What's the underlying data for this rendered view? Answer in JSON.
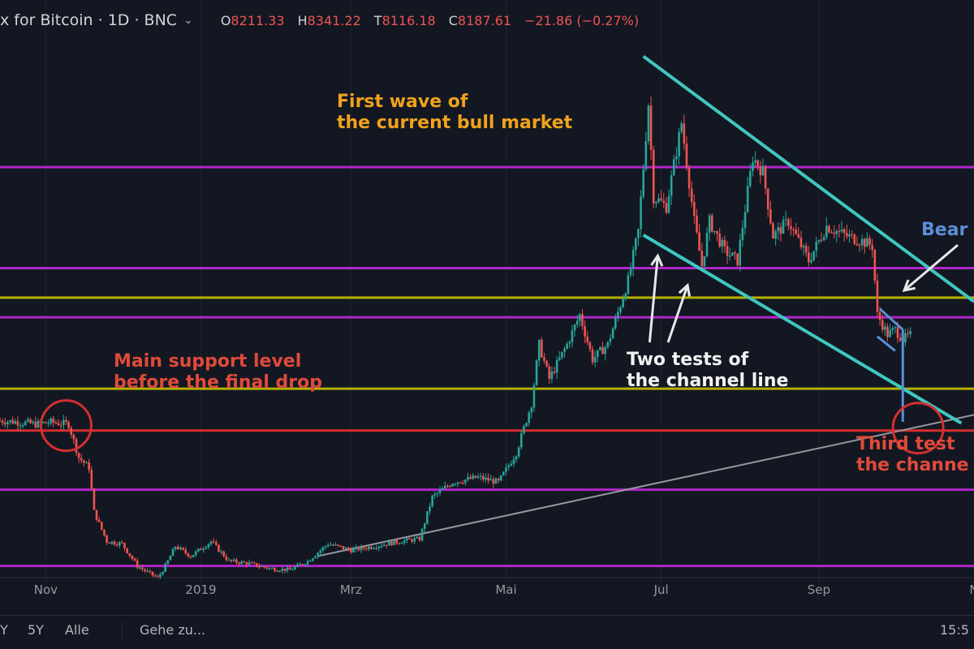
{
  "header": {
    "title": "x for Bitcoin · 1D · BNC",
    "ohlc": [
      {
        "key": "O",
        "value": "8211.33"
      },
      {
        "key": "H",
        "value": "8341.22"
      },
      {
        "key": "T",
        "value": "8116.18"
      },
      {
        "key": "C",
        "value": "8187.61"
      }
    ],
    "change": "−21.86 (−0.27%)",
    "colors": {
      "negative": "#ef5350",
      "positive": "#26a69a"
    }
  },
  "annotations": {
    "first_wave": [
      "First wave of",
      "the current bull market"
    ],
    "main_support": [
      "Main support level",
      "before the final drop"
    ],
    "two_tests": [
      "Two tests of",
      "the channel line"
    ],
    "third_test": [
      "Third test",
      "the channe"
    ],
    "bear": "Bear"
  },
  "bottom_bar": {
    "ranges": [
      "Y",
      "5Y",
      "Alle"
    ],
    "goto": "Gehe zu...",
    "clock": "15:5"
  },
  "chart_data": {
    "type": "candlestick",
    "x_axis": {
      "labels": [
        "Nov",
        "2019",
        "Mrz",
        "Mai",
        "Jul",
        "Sep",
        "N"
      ],
      "range": [
        "2018-10-14",
        "2019-11-01"
      ]
    },
    "y_range": [
      3000,
      14500
    ],
    "price_path": [
      [
        "2018-10-14",
        6450
      ],
      [
        "2018-10-20",
        6430
      ],
      [
        "2018-10-28",
        6380
      ],
      [
        "2018-11-03",
        6420
      ],
      [
        "2018-11-10",
        6380
      ],
      [
        "2018-11-14",
        5700
      ],
      [
        "2018-11-18",
        5500
      ],
      [
        "2018-11-20",
        4600
      ],
      [
        "2018-11-25",
        4000
      ],
      [
        "2018-12-01",
        3950
      ],
      [
        "2018-12-07",
        3500
      ],
      [
        "2018-12-15",
        3250
      ],
      [
        "2018-12-18",
        3500
      ],
      [
        "2018-12-22",
        3900
      ],
      [
        "2018-12-28",
        3700
      ],
      [
        "2019-01-05",
        4000
      ],
      [
        "2019-01-12",
        3600
      ],
      [
        "2019-01-20",
        3550
      ],
      [
        "2019-01-28",
        3450
      ],
      [
        "2019-02-05",
        3420
      ],
      [
        "2019-02-12",
        3600
      ],
      [
        "2019-02-20",
        3950
      ],
      [
        "2019-03-01",
        3820
      ],
      [
        "2019-03-10",
        3900
      ],
      [
        "2019-03-20",
        4000
      ],
      [
        "2019-03-28",
        4050
      ],
      [
        "2019-04-02",
        4900
      ],
      [
        "2019-04-10",
        5200
      ],
      [
        "2019-04-20",
        5300
      ],
      [
        "2019-04-28",
        5200
      ],
      [
        "2019-05-05",
        5800
      ],
      [
        "2019-05-11",
        6800
      ],
      [
        "2019-05-14",
        8000
      ],
      [
        "2019-05-18",
        7300
      ],
      [
        "2019-05-25",
        8000
      ],
      [
        "2019-05-30",
        8600
      ],
      [
        "2019-06-04",
        7700
      ],
      [
        "2019-06-10",
        8000
      ],
      [
        "2019-06-18",
        9300
      ],
      [
        "2019-06-22",
        10300
      ],
      [
        "2019-06-26",
        12900
      ],
      [
        "2019-06-28",
        11000
      ],
      [
        "2019-07-03",
        10800
      ],
      [
        "2019-07-09",
        12500
      ],
      [
        "2019-07-14",
        10500
      ],
      [
        "2019-07-17",
        9600
      ],
      [
        "2019-07-20",
        10500
      ],
      [
        "2019-07-26",
        9900
      ],
      [
        "2019-07-31",
        9700
      ],
      [
        "2019-08-06",
        11800
      ],
      [
        "2019-08-10",
        11500
      ],
      [
        "2019-08-14",
        10200
      ],
      [
        "2019-08-20",
        10500
      ],
      [
        "2019-08-28",
        9700
      ],
      [
        "2019-09-04",
        10400
      ],
      [
        "2019-09-12",
        10200
      ],
      [
        "2019-09-18",
        10100
      ],
      [
        "2019-09-22",
        10000
      ],
      [
        "2019-09-24",
        8600
      ],
      [
        "2019-09-28",
        8200
      ],
      [
        "2019-10-01",
        8300
      ],
      [
        "2019-10-04",
        8100
      ],
      [
        "2019-10-07",
        8187
      ]
    ],
    "horizontal_levels": [
      {
        "price": 11600,
        "color": "#b026c8"
      },
      {
        "price": 9550,
        "color": "#b026c8"
      },
      {
        "price": 8550,
        "color": "#b026c8"
      },
      {
        "price": 5050,
        "color": "#b026c8"
      },
      {
        "price": 3500,
        "color": "#b026c8"
      },
      {
        "price": 8950,
        "color": "#b5b000"
      },
      {
        "price": 7100,
        "color": "#b5b000"
      },
      {
        "price": 6250,
        "color": "#d32f2f"
      }
    ],
    "channel": {
      "upper": [
        [
          "2019-06-24",
          13850
        ],
        [
          "2019-11-01",
          8870
        ]
      ],
      "lower": [
        [
          "2019-06-24",
          10220
        ],
        [
          "2019-10-27",
          6400
        ]
      ],
      "color": "#3fc7c0"
    },
    "trendline": {
      "points": [
        [
          "2019-02-16",
          3700
        ],
        [
          "2019-11-01",
          6570
        ]
      ],
      "color": "#9598a1"
    },
    "bear_flag": {
      "upper": [
        [
          "2019-09-25",
          8720
        ],
        [
          "2019-10-04",
          8300
        ]
      ],
      "lower": [
        [
          "2019-09-24",
          8160
        ],
        [
          "2019-10-01",
          7870
        ]
      ],
      "target_low": 6430,
      "color": "#5b8fd6"
    },
    "circles": [
      {
        "date": "2018-11-09",
        "price": 6350,
        "color": "#d32f2f"
      },
      {
        "date": "2019-10-10",
        "price": 6300,
        "color": "#d32f2f"
      }
    ],
    "colors": {
      "up": "#26a69a",
      "down": "#ef5350"
    }
  }
}
